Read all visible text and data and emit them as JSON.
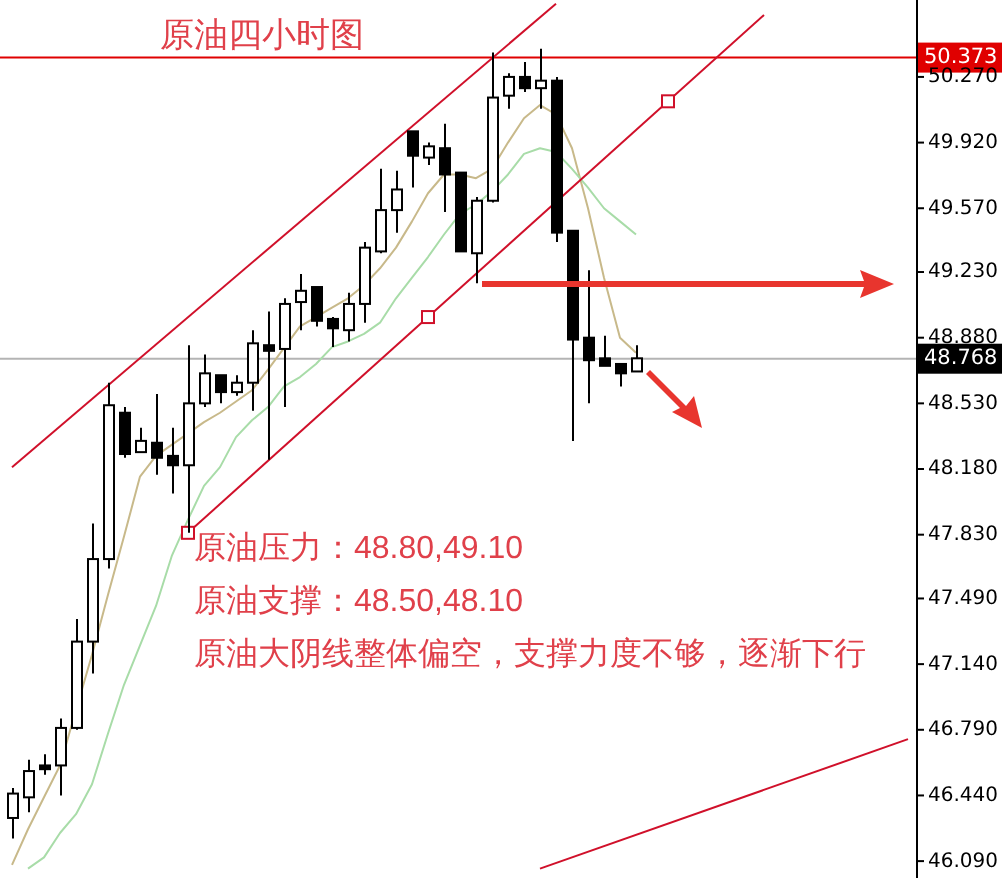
{
  "chart_data": {
    "type": "candlestick",
    "title": "原油四小时图",
    "annotations": [
      "原油压力：48.80,49.10",
      "原油支撑：48.50,48.10",
      "原油大阴线整体偏空，支撑力度不够，逐渐下行"
    ],
    "categories": [
      null,
      null,
      null,
      null,
      null,
      null,
      null,
      null,
      null,
      null,
      null,
      null,
      null,
      null,
      null,
      null,
      null,
      null,
      null,
      null,
      null,
      null,
      null,
      null,
      null,
      null,
      null,
      null,
      null,
      null,
      null,
      null,
      null,
      null,
      null,
      null,
      null,
      null,
      null,
      null,
      null,
      null,
      null,
      null,
      null,
      null,
      null,
      null,
      null,
      null,
      null,
      null,
      null,
      null,
      null,
      null,
      null
    ],
    "ohlc": [
      [
        46.32,
        46.48,
        46.21,
        46.45
      ],
      [
        46.43,
        46.63,
        46.35,
        46.57
      ],
      [
        46.6,
        46.66,
        46.55,
        46.58
      ],
      [
        46.6,
        46.85,
        46.44,
        46.8
      ],
      [
        46.8,
        47.38,
        46.79,
        47.26
      ],
      [
        47.26,
        47.89,
        47.09,
        47.7
      ],
      [
        47.7,
        48.64,
        47.65,
        48.52
      ],
      [
        48.48,
        48.51,
        48.24,
        48.26
      ],
      [
        48.27,
        48.4,
        48.27,
        48.33
      ],
      [
        48.32,
        48.58,
        48.15,
        48.24
      ],
      [
        48.25,
        48.4,
        48.05,
        48.2
      ],
      [
        48.2,
        48.84,
        47.84,
        48.53
      ],
      [
        48.53,
        48.79,
        48.51,
        48.69
      ],
      [
        48.68,
        48.68,
        48.53,
        48.59
      ],
      [
        48.59,
        48.68,
        48.57,
        48.64
      ],
      [
        48.64,
        48.92,
        48.49,
        48.85
      ],
      [
        48.84,
        49.02,
        48.23,
        48.81
      ],
      [
        48.82,
        49.09,
        48.51,
        49.06
      ],
      [
        49.07,
        49.22,
        48.92,
        49.13
      ],
      [
        49.15,
        49.15,
        48.94,
        48.97
      ],
      [
        48.98,
        48.99,
        48.83,
        48.93
      ],
      [
        48.92,
        49.12,
        48.86,
        49.06
      ],
      [
        49.06,
        49.39,
        48.96,
        49.36
      ],
      [
        49.34,
        49.78,
        49.33,
        49.56
      ],
      [
        49.56,
        49.77,
        49.44,
        49.67
      ],
      [
        49.98,
        49.98,
        49.68,
        49.85
      ],
      [
        49.84,
        49.92,
        49.8,
        49.9
      ],
      [
        49.89,
        50.02,
        49.55,
        49.75
      ],
      [
        49.76,
        49.76,
        49.34,
        49.34
      ],
      [
        49.33,
        49.63,
        49.17,
        49.61
      ],
      [
        49.61,
        50.4,
        49.6,
        50.16
      ],
      [
        50.17,
        50.29,
        50.1,
        50.27
      ],
      [
        50.27,
        50.35,
        50.19,
        50.21
      ],
      [
        50.21,
        50.42,
        50.1,
        50.25
      ],
      [
        50.25,
        50.27,
        49.39,
        49.44
      ],
      [
        49.45,
        49.45,
        48.33,
        48.87
      ],
      [
        48.88,
        49.24,
        48.53,
        48.76
      ],
      [
        48.77,
        48.89,
        48.73,
        48.73
      ],
      [
        48.74,
        48.74,
        48.62,
        48.69
      ],
      [
        48.7,
        48.84,
        48.7,
        48.77
      ],
      null,
      null,
      null,
      null,
      null,
      null,
      null,
      null,
      null,
      null,
      null,
      null,
      null,
      null,
      null,
      null,
      null
    ],
    "series": [
      {
        "type": "line",
        "color": "#c8b98a",
        "values": [
          46.07,
          46.26,
          46.43,
          46.6,
          null,
          47.19,
          47.51,
          47.82,
          48.14,
          48.25,
          48.31,
          48.37,
          48.43,
          48.48,
          48.54,
          48.6,
          48.71,
          null,
          48.94,
          48.99,
          49.04,
          49.09,
          49.16,
          49.25,
          49.36,
          49.5,
          49.65,
          49.75,
          49.75,
          49.73,
          49.78,
          49.92,
          50.05,
          50.12,
          50.07,
          49.89,
          49.57,
          49.2,
          48.88,
          48.8,
          null,
          null,
          null,
          null,
          null,
          null,
          null,
          null,
          null,
          null,
          null,
          null,
          null,
          null,
          null,
          null,
          null
        ]
      },
      {
        "type": "line",
        "color": "#a8dca8",
        "values": [
          null,
          46.05,
          46.11,
          46.24,
          46.34,
          46.5,
          46.77,
          47.03,
          47.24,
          47.45,
          47.72,
          47.91,
          48.09,
          48.19,
          48.35,
          48.44,
          48.51,
          48.62,
          48.67,
          48.74,
          48.83,
          48.86,
          48.9,
          48.96,
          49.09,
          49.2,
          49.31,
          49.43,
          49.54,
          49.59,
          49.66,
          49.75,
          49.86,
          49.89,
          49.87,
          49.78,
          49.68,
          49.57,
          49.5,
          49.43,
          null,
          null,
          null,
          null,
          null,
          null,
          null,
          null,
          null,
          null,
          null,
          null,
          null,
          null,
          null,
          null,
          null
        ]
      },
      {
        "type": "line",
        "color": "#d0102a",
        "values": [
          48.19,
          null,
          null,
          null,
          null,
          null,
          null,
          null,
          null,
          null,
          null,
          null,
          null,
          null,
          null,
          null,
          null,
          null,
          null,
          null,
          null,
          null,
          null,
          null,
          null,
          null,
          null,
          null,
          null,
          null,
          null,
          null,
          null,
          null,
          50.66,
          null,
          null,
          null,
          null,
          null,
          null,
          null,
          null,
          null,
          null,
          null,
          null,
          null,
          null,
          null,
          null,
          null,
          null,
          null,
          null,
          null,
          null
        ]
      },
      {
        "type": "line",
        "color": "#d0102a",
        "values": [
          null,
          null,
          null,
          null,
          null,
          null,
          null,
          null,
          null,
          null,
          null,
          47.84,
          null,
          null,
          null,
          null,
          null,
          null,
          null,
          null,
          null,
          null,
          null,
          null,
          null,
          null,
          null,
          null,
          null,
          null,
          null,
          null,
          null,
          null,
          null,
          null,
          null,
          null,
          null,
          null,
          null,
          null,
          null,
          null,
          null,
          null,
          null,
          50.6,
          null,
          null,
          null,
          null,
          null,
          null,
          null,
          null,
          null
        ]
      },
      {
        "type": "scatter",
        "color": "#d0102a",
        "marker": "square",
        "values": [
          null,
          null,
          null,
          null,
          null,
          null,
          null,
          null,
          null,
          null,
          null,
          47.84,
          null,
          null,
          null,
          null,
          null,
          null,
          null,
          null,
          null,
          null,
          null,
          null,
          null,
          null,
          48.99,
          null,
          null,
          null,
          null,
          null,
          null,
          null,
          null,
          null,
          null,
          null,
          null,
          null,
          null,
          50.14,
          null,
          null,
          null,
          null,
          null,
          null,
          null,
          null,
          null,
          null,
          null,
          null,
          null,
          null,
          null
        ]
      },
      {
        "type": "line",
        "color": "#d0102a",
        "values": [
          null,
          null,
          null,
          null,
          null,
          null,
          null,
          null,
          null,
          null,
          null,
          null,
          null,
          null,
          null,
          null,
          null,
          null,
          null,
          null,
          null,
          null,
          null,
          null,
          null,
          null,
          null,
          null,
          null,
          null,
          null,
          null,
          null,
          46.05,
          null,
          null,
          null,
          null,
          null,
          null,
          null,
          null,
          null,
          null,
          null,
          null,
          null,
          null,
          null,
          null,
          null,
          null,
          null,
          null,
          null,
          null,
          46.74
        ]
      }
    ],
    "ref_lines": [
      {
        "axis": "y",
        "value": 50.373,
        "label": "50.373",
        "color": "#e00000"
      },
      {
        "axis": "y",
        "value": 48.768,
        "label": "48.768",
        "color": "#b4b4b4"
      }
    ],
    "ylim": [
      46.0,
      50.68
    ],
    "yticks": [
      {
        "value": 46.09,
        "label": "46.090"
      },
      {
        "value": 46.44,
        "label": "46.440"
      },
      {
        "value": 46.79,
        "label": "46.790"
      },
      {
        "value": 47.14,
        "label": "47.140"
      },
      {
        "value": 47.49,
        "label": "47.490"
      },
      {
        "value": 47.83,
        "label": "47.830"
      },
      {
        "value": 48.18,
        "label": "48.180"
      },
      {
        "value": 48.53,
        "label": "48.530"
      },
      {
        "value": 48.88,
        "label": "48.880"
      },
      {
        "value": 49.23,
        "label": "49.230"
      },
      {
        "value": 49.57,
        "label": "49.570"
      },
      {
        "value": 49.92,
        "label": "49.920"
      },
      {
        "value": 50.27,
        "label": "50.270"
      }
    ],
    "tick_labels": "y"
  }
}
